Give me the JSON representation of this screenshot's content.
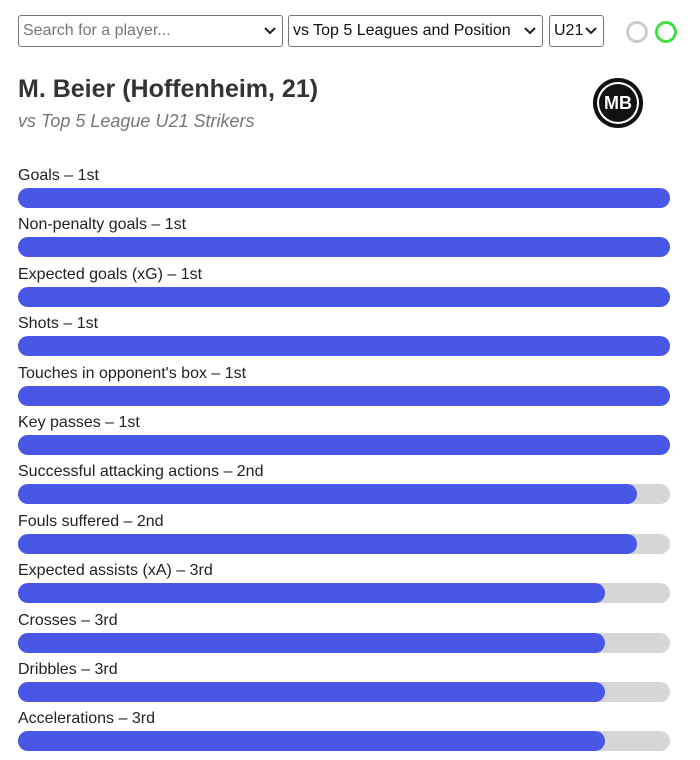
{
  "controls": {
    "search_placeholder": "Search for a player...",
    "comparison": "vs Top 5 Leagues and Position",
    "age_group": "U21"
  },
  "header": {
    "title": "M. Beier (Hoffenheim, 21)",
    "subtitle": "vs Top 5 League U21 Strikers",
    "logo": "MB"
  },
  "bar_color": "#4857e6",
  "stats": [
    {
      "label": "Goals – 1st",
      "value": 100
    },
    {
      "label": "Non-penalty goals – 1st",
      "value": 100
    },
    {
      "label": "Expected goals (xG) – 1st",
      "value": 100
    },
    {
      "label": "Shots – 1st",
      "value": 100
    },
    {
      "label": "Touches in opponent's box – 1st",
      "value": 100
    },
    {
      "label": "Key passes – 1st",
      "value": 100
    },
    {
      "label": "Successful attacking actions – 2nd",
      "value": 95
    },
    {
      "label": "Fouls suffered – 2nd",
      "value": 95
    },
    {
      "label": "Expected assists (xA) – 3rd",
      "value": 90
    },
    {
      "label": "Crosses – 3rd",
      "value": 90
    },
    {
      "label": "Dribbles – 3rd",
      "value": 90
    },
    {
      "label": "Accelerations – 3rd",
      "value": 90
    }
  ]
}
